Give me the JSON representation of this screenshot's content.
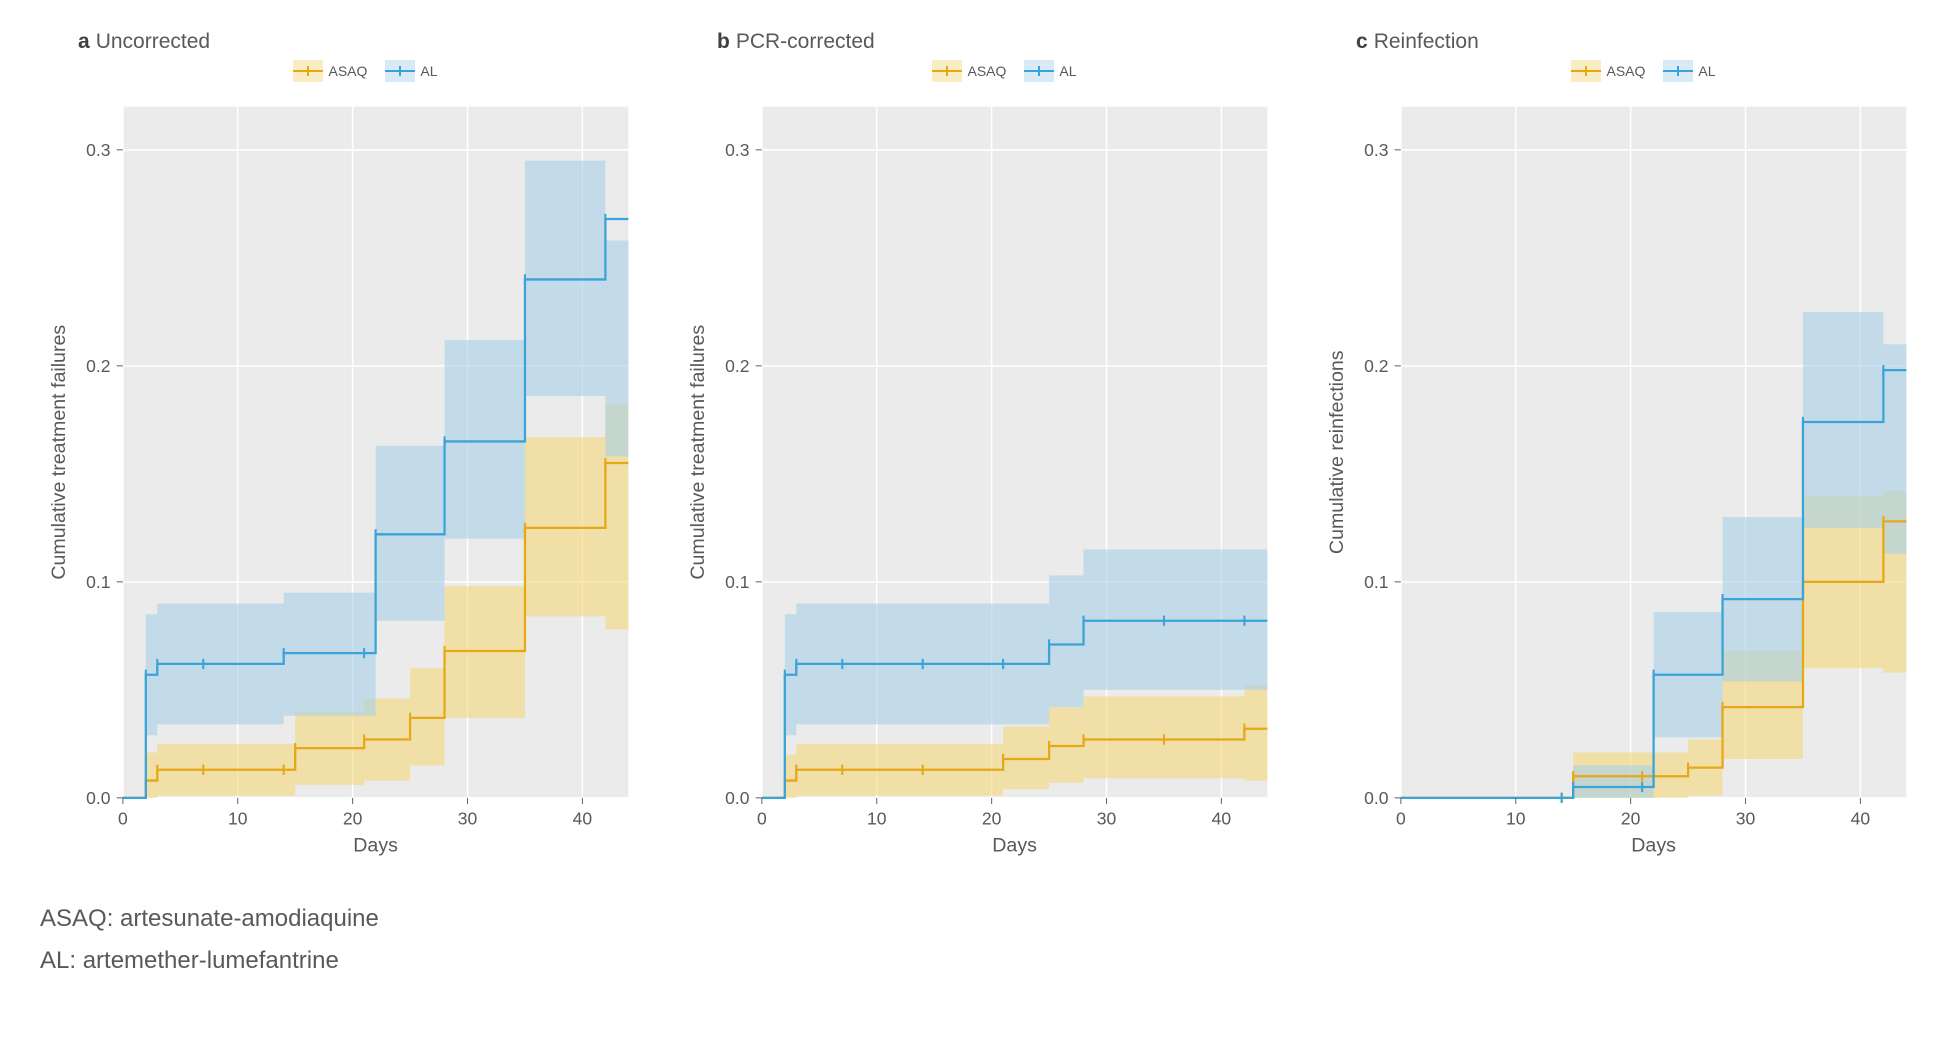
{
  "background": "#ffffff",
  "panel_bg": "#ebebeb",
  "grid_color": "#ffffff",
  "axis_text_color": "#595959",
  "colors": {
    "ASAQ": {
      "stroke": "#e6a817",
      "fill": "#f4d77a"
    },
    "AL": {
      "stroke": "#3ba3d8",
      "fill": "#a9d1e8"
    }
  },
  "xlabel": "Days",
  "xlim": [
    0,
    44
  ],
  "xticks": [
    0,
    10,
    20,
    30,
    40
  ],
  "ylim": [
    0,
    0.32
  ],
  "yticks": [
    0.0,
    0.1,
    0.2,
    0.3
  ],
  "legend_items": [
    {
      "key": "ASAQ",
      "label": "ASAQ"
    },
    {
      "key": "AL",
      "label": "AL"
    }
  ],
  "footnotes": [
    "ASAQ: artesunate-amodiaquine",
    "AL: artemether-lumefantrine"
  ],
  "panels": [
    {
      "id": "a",
      "tag": "a",
      "title": "Uncorrected",
      "ylabel": "Cumulative treatment failures",
      "series": {
        "ASAQ": {
          "steps": [
            [
              0,
              0.0
            ],
            [
              2,
              0.008
            ],
            [
              3,
              0.013
            ],
            [
              7,
              0.013
            ],
            [
              14,
              0.013
            ],
            [
              15,
              0.023
            ],
            [
              21,
              0.027
            ],
            [
              25,
              0.037
            ],
            [
              28,
              0.068
            ],
            [
              35,
              0.125
            ],
            [
              42,
              0.155
            ]
          ],
          "band": [
            [
              0,
              0,
              0
            ],
            [
              2,
              0,
              0.021
            ],
            [
              3,
              0.001,
              0.025
            ],
            [
              7,
              0.001,
              0.025
            ],
            [
              14,
              0.001,
              0.025
            ],
            [
              15,
              0.006,
              0.04
            ],
            [
              21,
              0.008,
              0.046
            ],
            [
              25,
              0.015,
              0.06
            ],
            [
              28,
              0.037,
              0.098
            ],
            [
              35,
              0.084,
              0.167
            ],
            [
              42,
              0.078,
              0.182
            ]
          ]
        },
        "AL": {
          "steps": [
            [
              0,
              0.0
            ],
            [
              2,
              0.057
            ],
            [
              3,
              0.062
            ],
            [
              7,
              0.062
            ],
            [
              14,
              0.067
            ],
            [
              21,
              0.067
            ],
            [
              22,
              0.122
            ],
            [
              28,
              0.165
            ],
            [
              35,
              0.24
            ],
            [
              42,
              0.268
            ]
          ],
          "band": [
            [
              0,
              0,
              0
            ],
            [
              2,
              0.029,
              0.085
            ],
            [
              3,
              0.034,
              0.09
            ],
            [
              7,
              0.034,
              0.09
            ],
            [
              14,
              0.038,
              0.095
            ],
            [
              21,
              0.038,
              0.095
            ],
            [
              22,
              0.082,
              0.163
            ],
            [
              28,
              0.12,
              0.212
            ],
            [
              35,
              0.186,
              0.295
            ],
            [
              42,
              0.158,
              0.258
            ]
          ]
        }
      }
    },
    {
      "id": "b",
      "tag": "b",
      "title": "PCR-corrected",
      "ylabel": "Cumulative treatment failures",
      "series": {
        "ASAQ": {
          "steps": [
            [
              0,
              0.0
            ],
            [
              2,
              0.008
            ],
            [
              3,
              0.013
            ],
            [
              7,
              0.013
            ],
            [
              14,
              0.013
            ],
            [
              21,
              0.018
            ],
            [
              25,
              0.024
            ],
            [
              28,
              0.027
            ],
            [
              35,
              0.027
            ],
            [
              42,
              0.032
            ]
          ],
          "band": [
            [
              0,
              0,
              0
            ],
            [
              2,
              0,
              0.02
            ],
            [
              3,
              0.001,
              0.025
            ],
            [
              7,
              0.001,
              0.025
            ],
            [
              14,
              0.001,
              0.025
            ],
            [
              21,
              0.004,
              0.033
            ],
            [
              25,
              0.007,
              0.042
            ],
            [
              28,
              0.009,
              0.047
            ],
            [
              35,
              0.009,
              0.047
            ],
            [
              42,
              0.008,
              0.052
            ]
          ]
        },
        "AL": {
          "steps": [
            [
              0,
              0.0
            ],
            [
              2,
              0.057
            ],
            [
              3,
              0.062
            ],
            [
              7,
              0.062
            ],
            [
              14,
              0.062
            ],
            [
              21,
              0.062
            ],
            [
              25,
              0.071
            ],
            [
              28,
              0.082
            ],
            [
              35,
              0.082
            ],
            [
              42,
              0.082
            ]
          ],
          "band": [
            [
              0,
              0,
              0
            ],
            [
              2,
              0.029,
              0.085
            ],
            [
              3,
              0.034,
              0.09
            ],
            [
              7,
              0.034,
              0.09
            ],
            [
              14,
              0.034,
              0.09
            ],
            [
              21,
              0.034,
              0.09
            ],
            [
              25,
              0.042,
              0.103
            ],
            [
              28,
              0.05,
              0.115
            ],
            [
              35,
              0.05,
              0.115
            ],
            [
              42,
              0.05,
              0.115
            ]
          ]
        }
      }
    },
    {
      "id": "c",
      "tag": "c",
      "title": "Reinfection",
      "ylabel": "Cumulative reinfections",
      "series": {
        "ASAQ": {
          "steps": [
            [
              0,
              0.0
            ],
            [
              14,
              0.0
            ],
            [
              15,
              0.01
            ],
            [
              21,
              0.01
            ],
            [
              25,
              0.014
            ],
            [
              28,
              0.042
            ],
            [
              35,
              0.1
            ],
            [
              42,
              0.128
            ]
          ],
          "band": [
            [
              0,
              0,
              0
            ],
            [
              14,
              0,
              0
            ],
            [
              15,
              0,
              0.021
            ],
            [
              21,
              0,
              0.021
            ],
            [
              25,
              0.001,
              0.027
            ],
            [
              28,
              0.018,
              0.068
            ],
            [
              35,
              0.06,
              0.14
            ],
            [
              42,
              0.058,
              0.142
            ]
          ]
        },
        "AL": {
          "steps": [
            [
              0,
              0.0
            ],
            [
              14,
              0.0
            ],
            [
              15,
              0.005
            ],
            [
              21,
              0.005
            ],
            [
              22,
              0.057
            ],
            [
              28,
              0.092
            ],
            [
              35,
              0.174
            ],
            [
              42,
              0.198
            ]
          ],
          "band": [
            [
              0,
              0,
              0
            ],
            [
              14,
              0,
              0
            ],
            [
              15,
              0,
              0.015
            ],
            [
              21,
              0,
              0.015
            ],
            [
              22,
              0.028,
              0.086
            ],
            [
              28,
              0.054,
              0.13
            ],
            [
              35,
              0.125,
              0.225
            ],
            [
              42,
              0.113,
              0.21
            ]
          ]
        }
      }
    }
  ]
}
